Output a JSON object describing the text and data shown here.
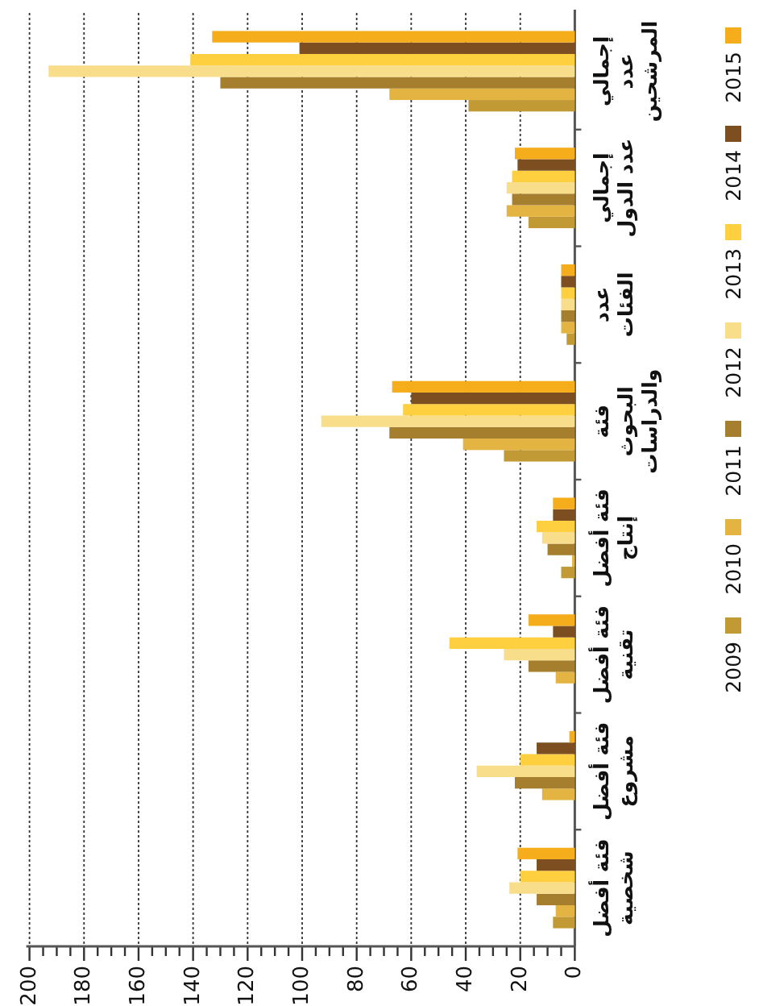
{
  "chart_data": {
    "type": "bar",
    "orientation": "horizontal",
    "categories": [
      "إجمالي عدد المرشحين",
      "إجمالي عدد الدول",
      "عدد الفئات",
      "فئة البحوث والدراسات",
      "فئة أفضل إنتاج",
      "فئة أفضل تقنية",
      "فئة أفضل مشروع",
      "فئة أفضل شخصية"
    ],
    "series": [
      {
        "name": "2009",
        "color": "#c19a36",
        "values": [
          39,
          17,
          3,
          26,
          5,
          0,
          0,
          8
        ]
      },
      {
        "name": "2010",
        "color": "#e4b443",
        "values": [
          68,
          25,
          5,
          41,
          1,
          7,
          12,
          7
        ]
      },
      {
        "name": "2011",
        "color": "#a67f2e",
        "values": [
          130,
          23,
          5,
          68,
          10,
          17,
          22,
          14
        ]
      },
      {
        "name": "2012",
        "color": "#f8dd8a",
        "values": [
          193,
          25,
          5,
          93,
          12,
          26,
          36,
          24
        ]
      },
      {
        "name": "2013",
        "color": "#fecf3e",
        "values": [
          141,
          23,
          5,
          63,
          14,
          46,
          20,
          20
        ]
      },
      {
        "name": "2014",
        "color": "#7d4f20",
        "values": [
          101,
          21,
          5,
          60,
          8,
          8,
          14,
          14
        ]
      },
      {
        "name": "2015",
        "color": "#f5ad1b",
        "values": [
          133,
          22,
          5,
          67,
          8,
          17,
          2,
          21
        ]
      }
    ],
    "xlim": [
      200,
      0
    ],
    "xticks": [
      0,
      {
        "value": 5,
        "label": null
      },
      {
        "value": 10,
        "label": null
      },
      {
        "value": 15,
        "label": null
      },
      20,
      {
        "value": 25,
        "label": null
      },
      {
        "value": 30,
        "label": null
      },
      {
        "value": 35,
        "label": null
      },
      40,
      {
        "value": 45,
        "label": null
      },
      {
        "value": 50,
        "label": null
      },
      {
        "value": 55,
        "label": null
      },
      60,
      {
        "value": 65,
        "label": null
      },
      {
        "value": 70,
        "label": null
      },
      {
        "value": 75,
        "label": null
      },
      80,
      {
        "value": 85,
        "label": null
      },
      {
        "value": 90,
        "label": null
      },
      {
        "value": 95,
        "label": null
      },
      100,
      {
        "value": 105,
        "label": null
      },
      {
        "value": 110,
        "label": null
      },
      {
        "value": 115,
        "label": null
      },
      120,
      {
        "value": 125,
        "label": null
      },
      {
        "value": 130,
        "label": null
      },
      {
        "value": 135,
        "label": null
      },
      140,
      {
        "value": 145,
        "label": null
      },
      {
        "value": 150,
        "label": null
      },
      {
        "value": 155,
        "label": null
      },
      160,
      {
        "value": 165,
        "label": null
      },
      {
        "value": 170,
        "label": null
      },
      {
        "value": 175,
        "label": null
      },
      180,
      {
        "value": 185,
        "label": null
      },
      {
        "value": 190,
        "label": null
      },
      {
        "value": 195,
        "label": null
      },
      200
    ],
    "grid": "x",
    "legend": "right"
  }
}
